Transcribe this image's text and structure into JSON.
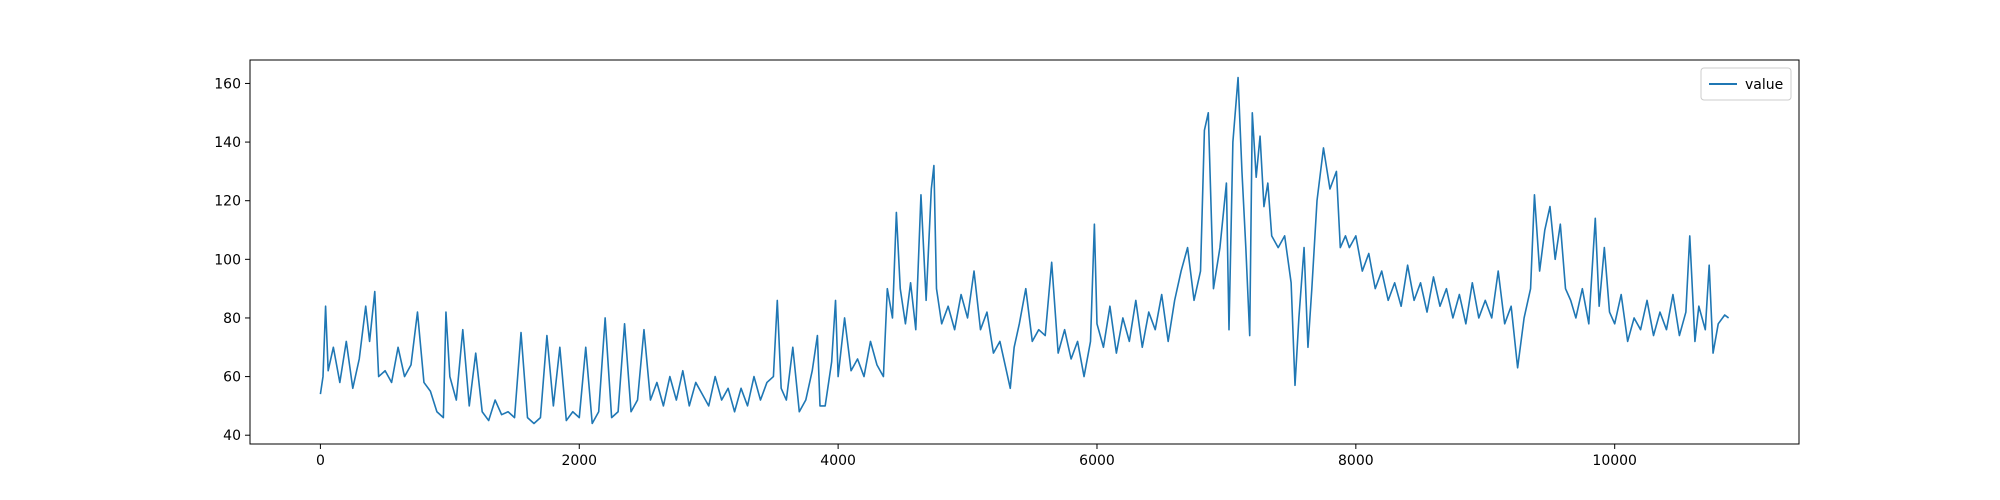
{
  "chart_data": {
    "type": "line",
    "x": [
      0,
      20,
      40,
      60,
      100,
      150,
      200,
      250,
      300,
      350,
      380,
      420,
      450,
      500,
      550,
      600,
      650,
      700,
      750,
      800,
      850,
      900,
      950,
      970,
      1000,
      1050,
      1100,
      1150,
      1200,
      1250,
      1300,
      1350,
      1400,
      1450,
      1500,
      1550,
      1600,
      1650,
      1700,
      1750,
      1800,
      1850,
      1900,
      1950,
      2000,
      2050,
      2100,
      2150,
      2200,
      2250,
      2300,
      2350,
      2400,
      2450,
      2500,
      2550,
      2600,
      2650,
      2700,
      2750,
      2800,
      2850,
      2900,
      2950,
      3000,
      3050,
      3100,
      3150,
      3200,
      3250,
      3300,
      3350,
      3400,
      3450,
      3500,
      3530,
      3560,
      3600,
      3650,
      3700,
      3750,
      3800,
      3840,
      3860,
      3900,
      3950,
      3980,
      4000,
      4050,
      4100,
      4150,
      4200,
      4250,
      4300,
      4350,
      4380,
      4420,
      4450,
      4480,
      4520,
      4560,
      4600,
      4640,
      4680,
      4720,
      4740,
      4760,
      4800,
      4850,
      4900,
      4950,
      5000,
      5050,
      5100,
      5150,
      5200,
      5250,
      5300,
      5330,
      5360,
      5400,
      5450,
      5500,
      5550,
      5600,
      5650,
      5700,
      5750,
      5800,
      5850,
      5900,
      5950,
      5980,
      6000,
      6050,
      6100,
      6150,
      6200,
      6250,
      6300,
      6350,
      6400,
      6450,
      6500,
      6550,
      6600,
      6650,
      6700,
      6750,
      6800,
      6830,
      6860,
      6900,
      6950,
      7000,
      7020,
      7050,
      7090,
      7120,
      7150,
      7180,
      7200,
      7230,
      7260,
      7290,
      7320,
      7350,
      7400,
      7450,
      7500,
      7530,
      7560,
      7600,
      7630,
      7660,
      7700,
      7750,
      7800,
      7850,
      7880,
      7920,
      7950,
      8000,
      8050,
      8100,
      8150,
      8200,
      8250,
      8300,
      8350,
      8400,
      8450,
      8500,
      8550,
      8600,
      8650,
      8700,
      8750,
      8800,
      8850,
      8900,
      8950,
      9000,
      9050,
      9100,
      9150,
      9200,
      9250,
      9300,
      9350,
      9380,
      9420,
      9460,
      9500,
      9540,
      9580,
      9620,
      9660,
      9700,
      9750,
      9800,
      9850,
      9880,
      9920,
      9960,
      10000,
      10050,
      10100,
      10150,
      10200,
      10250,
      10300,
      10350,
      10400,
      10450,
      10500,
      10550,
      10580,
      10620,
      10650,
      10700,
      10730,
      10760,
      10800,
      10850,
      10880
    ],
    "series": [
      {
        "name": "value",
        "color": "#1f77b4",
        "values": [
          54,
          60,
          84,
          62,
          70,
          58,
          72,
          56,
          66,
          84,
          72,
          89,
          60,
          62,
          58,
          70,
          60,
          64,
          82,
          58,
          55,
          48,
          46,
          82,
          60,
          52,
          76,
          50,
          68,
          48,
          45,
          52,
          47,
          48,
          46,
          75,
          46,
          44,
          46,
          74,
          50,
          70,
          45,
          48,
          46,
          70,
          44,
          48,
          80,
          46,
          48,
          78,
          48,
          52,
          76,
          52,
          58,
          50,
          60,
          52,
          62,
          50,
          58,
          54,
          50,
          60,
          52,
          56,
          48,
          56,
          50,
          60,
          52,
          58,
          60,
          86,
          56,
          52,
          70,
          48,
          52,
          62,
          74,
          50,
          50,
          65,
          86,
          60,
          80,
          62,
          66,
          60,
          72,
          64,
          60,
          90,
          80,
          116,
          90,
          78,
          92,
          76,
          122,
          86,
          124,
          132,
          90,
          78,
          84,
          76,
          88,
          80,
          96,
          76,
          82,
          68,
          72,
          62,
          56,
          70,
          78,
          90,
          72,
          76,
          74,
          99,
          68,
          76,
          66,
          72,
          60,
          72,
          112,
          78,
          70,
          84,
          68,
          80,
          72,
          86,
          70,
          82,
          76,
          88,
          72,
          86,
          96,
          104,
          86,
          96,
          144,
          150,
          90,
          104,
          126,
          76,
          140,
          162,
          130,
          104,
          74,
          150,
          128,
          142,
          118,
          126,
          108,
          104,
          108,
          92,
          57,
          80,
          104,
          70,
          90,
          120,
          138,
          124,
          130,
          104,
          108,
          104,
          108,
          96,
          102,
          90,
          96,
          86,
          92,
          84,
          98,
          86,
          92,
          82,
          94,
          84,
          90,
          80,
          88,
          78,
          92,
          80,
          86,
          80,
          96,
          78,
          84,
          63,
          80,
          90,
          122,
          96,
          110,
          118,
          100,
          112,
          90,
          86,
          80,
          90,
          78,
          114,
          84,
          104,
          82,
          78,
          88,
          72,
          80,
          76,
          86,
          74,
          82,
          76,
          88,
          74,
          82,
          108,
          72,
          84,
          76,
          98,
          68,
          78,
          81,
          80
        ]
      }
    ],
    "xlim": [
      -544,
      11424
    ],
    "ylim": [
      37,
      168
    ],
    "xticks": [
      0,
      2000,
      4000,
      6000,
      8000,
      10000
    ],
    "yticks": [
      40,
      60,
      80,
      100,
      120,
      140,
      160
    ],
    "legend": "upper right"
  }
}
